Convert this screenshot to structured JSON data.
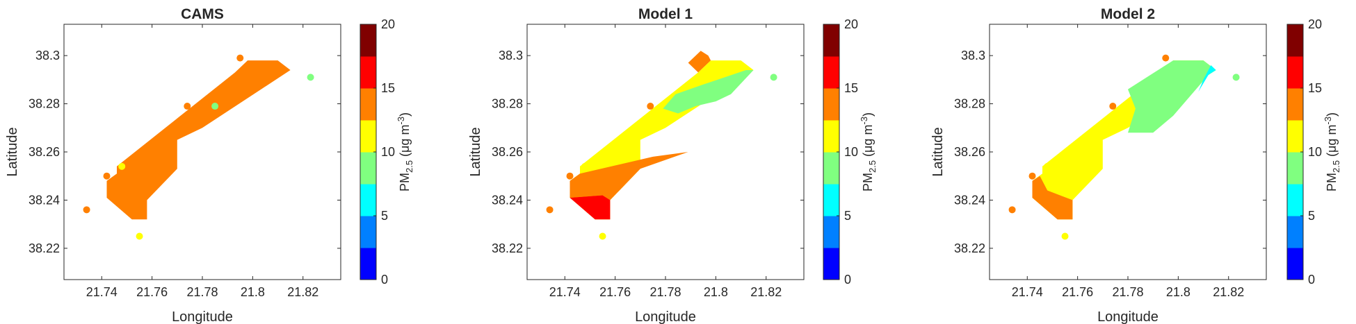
{
  "chart_data": [
    {
      "type": "contour-map",
      "title": "CAMS",
      "xlabel": "Longitude",
      "ylabel": "Latitude",
      "xlim": [
        21.725,
        21.835
      ],
      "ylim": [
        38.207,
        38.313
      ],
      "xticks": [
        21.74,
        21.76,
        21.78,
        21.8,
        21.82
      ],
      "xtick_labels": [
        "21.74",
        "21.76",
        "21.78",
        "21.8",
        "21.82"
      ],
      "yticks": [
        38.22,
        38.24,
        38.26,
        38.28,
        38.3
      ],
      "ytick_labels": [
        "38.22",
        "38.24",
        "38.26",
        "38.28",
        "38.3"
      ],
      "regions": [
        {
          "level": "12.5-15",
          "color": "#FF8000",
          "polygon": [
            [
              21.742,
              38.248
            ],
            [
              21.746,
              38.251
            ],
            [
              21.746,
              38.254
            ],
            [
              21.793,
              38.293
            ],
            [
              21.798,
              38.298
            ],
            [
              21.81,
              38.298
            ],
            [
              21.815,
              38.294
            ],
            [
              21.78,
              38.27
            ],
            [
              21.77,
              38.265
            ],
            [
              21.77,
              38.253
            ],
            [
              21.758,
              38.24
            ],
            [
              21.758,
              38.232
            ],
            [
              21.752,
              38.232
            ],
            [
              21.742,
              38.241
            ]
          ]
        }
      ],
      "stations": [
        {
          "lon": 21.734,
          "lat": 38.236,
          "pm25": 13.5
        },
        {
          "lon": 21.742,
          "lat": 38.25,
          "pm25": 13.5
        },
        {
          "lon": 21.748,
          "lat": 38.254,
          "pm25": 11.5
        },
        {
          "lon": 21.755,
          "lat": 38.225,
          "pm25": 11.5
        },
        {
          "lon": 21.774,
          "lat": 38.279,
          "pm25": 13.5
        },
        {
          "lon": 21.785,
          "lat": 38.279,
          "pm25": 9
        },
        {
          "lon": 21.795,
          "lat": 38.299,
          "pm25": 13.5
        },
        {
          "lon": 21.823,
          "lat": 38.291,
          "pm25": 9
        }
      ]
    },
    {
      "type": "contour-map",
      "title": "Model 1",
      "xlabel": "Longitude",
      "ylabel": "Latitude",
      "xlim": [
        21.725,
        21.835
      ],
      "ylim": [
        38.207,
        38.313
      ],
      "xticks": [
        21.74,
        21.76,
        21.78,
        21.8,
        21.82
      ],
      "xtick_labels": [
        "21.74",
        "21.76",
        "21.78",
        "21.8",
        "21.82"
      ],
      "yticks": [
        38.22,
        38.24,
        38.26,
        38.28,
        38.3
      ],
      "ytick_labels": [
        "38.22",
        "38.24",
        "38.26",
        "38.28",
        "38.3"
      ],
      "regions": [
        {
          "level": "10-12.5",
          "color": "#FFFF00",
          "polygon": [
            [
              21.742,
              38.248
            ],
            [
              21.746,
              38.251
            ],
            [
              21.746,
              38.254
            ],
            [
              21.793,
              38.293
            ],
            [
              21.798,
              38.298
            ],
            [
              21.81,
              38.298
            ],
            [
              21.815,
              38.294
            ],
            [
              21.78,
              38.27
            ],
            [
              21.77,
              38.265
            ],
            [
              21.77,
              38.253
            ],
            [
              21.758,
              38.24
            ],
            [
              21.758,
              38.232
            ],
            [
              21.752,
              38.232
            ],
            [
              21.742,
              38.241
            ]
          ]
        },
        {
          "level": "12.5-15",
          "color": "#FF8000",
          "polygon": [
            [
              21.742,
              38.241
            ],
            [
              21.742,
              38.248
            ],
            [
              21.746,
              38.251
            ],
            [
              21.775,
              38.258
            ],
            [
              21.789,
              38.26
            ],
            [
              21.77,
              38.253
            ],
            [
              21.758,
              38.24
            ],
            [
              21.755,
              38.242
            ]
          ]
        },
        {
          "level": "15-17.5",
          "color": "#FF0000",
          "polygon": [
            [
              21.742,
              38.241
            ],
            [
              21.755,
              38.242
            ],
            [
              21.758,
              38.24
            ],
            [
              21.758,
              38.232
            ],
            [
              21.752,
              38.232
            ]
          ]
        },
        {
          "level": "7.5-10",
          "color": "#80FF80",
          "polygon": [
            [
              21.779,
              38.278
            ],
            [
              21.784,
              38.284
            ],
            [
              21.795,
              38.288
            ],
            [
              21.812,
              38.294
            ],
            [
              21.815,
              38.294
            ],
            [
              21.806,
              38.284
            ],
            [
              21.8,
              38.281
            ],
            [
              21.792,
              38.279
            ],
            [
              21.785,
              38.276
            ]
          ]
        },
        {
          "level": "12.5-15",
          "color": "#FF8000",
          "polygon": [
            [
              21.789,
              38.297
            ],
            [
              21.793,
              38.293
            ],
            [
              21.798,
              38.298
            ],
            [
              21.797,
              38.3
            ],
            [
              21.794,
              38.302
            ]
          ]
        }
      ],
      "stations": [
        {
          "lon": 21.734,
          "lat": 38.236,
          "pm25": 13.5
        },
        {
          "lon": 21.742,
          "lat": 38.25,
          "pm25": 13.5
        },
        {
          "lon": 21.748,
          "lat": 38.254,
          "pm25": 11.5
        },
        {
          "lon": 21.755,
          "lat": 38.225,
          "pm25": 11.5
        },
        {
          "lon": 21.774,
          "lat": 38.279,
          "pm25": 13.5
        },
        {
          "lon": 21.795,
          "lat": 38.299,
          "pm25": 13.5
        },
        {
          "lon": 21.823,
          "lat": 38.291,
          "pm25": 9
        }
      ]
    },
    {
      "type": "contour-map",
      "title": "Model 2",
      "xlabel": "Longitude",
      "ylabel": "Latitude",
      "xlim": [
        21.725,
        21.835
      ],
      "ylim": [
        38.207,
        38.313
      ],
      "xticks": [
        21.74,
        21.76,
        21.78,
        21.8,
        21.82
      ],
      "xtick_labels": [
        "21.74",
        "21.76",
        "21.78",
        "21.8",
        "21.82"
      ],
      "yticks": [
        38.22,
        38.24,
        38.26,
        38.28,
        38.3
      ],
      "ytick_labels": [
        "38.22",
        "38.24",
        "38.26",
        "38.28",
        "38.3"
      ],
      "regions": [
        {
          "level": "10-12.5",
          "color": "#FFFF00",
          "polygon": [
            [
              21.742,
              38.248
            ],
            [
              21.746,
              38.251
            ],
            [
              21.746,
              38.254
            ],
            [
              21.793,
              38.293
            ],
            [
              21.798,
              38.298
            ],
            [
              21.81,
              38.298
            ],
            [
              21.815,
              38.294
            ],
            [
              21.78,
              38.27
            ],
            [
              21.77,
              38.265
            ],
            [
              21.77,
              38.253
            ],
            [
              21.758,
              38.24
            ],
            [
              21.758,
              38.232
            ],
            [
              21.752,
              38.232
            ],
            [
              21.742,
              38.241
            ]
          ]
        },
        {
          "level": "12.5-15",
          "color": "#FF8000",
          "polygon": [
            [
              21.742,
              38.241
            ],
            [
              21.742,
              38.248
            ],
            [
              21.745,
              38.25
            ],
            [
              21.748,
              38.244
            ],
            [
              21.758,
              38.24
            ],
            [
              21.758,
              38.232
            ],
            [
              21.752,
              38.232
            ]
          ]
        },
        {
          "level": "7.5-10",
          "color": "#80FF80",
          "polygon": [
            [
              21.78,
              38.286
            ],
            [
              21.798,
              38.298
            ],
            [
              21.81,
              38.298
            ],
            [
              21.815,
              38.294
            ],
            [
              21.812,
              38.292
            ],
            [
              21.798,
              38.275
            ],
            [
              21.79,
              38.268
            ],
            [
              21.78,
              38.268
            ],
            [
              21.783,
              38.278
            ]
          ]
        },
        {
          "level": "5-7.5",
          "color": "#00FFFF",
          "polygon": [
            [
              21.808,
              38.285
            ],
            [
              21.812,
              38.292
            ],
            [
              21.815,
              38.294
            ],
            [
              21.813,
              38.296
            ],
            [
              21.81,
              38.29
            ]
          ]
        }
      ],
      "stations": [
        {
          "lon": 21.734,
          "lat": 38.236,
          "pm25": 13.5
        },
        {
          "lon": 21.742,
          "lat": 38.25,
          "pm25": 13.5
        },
        {
          "lon": 21.748,
          "lat": 38.254,
          "pm25": 11.5
        },
        {
          "lon": 21.755,
          "lat": 38.225,
          "pm25": 11.5
        },
        {
          "lon": 21.774,
          "lat": 38.279,
          "pm25": 13.5
        },
        {
          "lon": 21.795,
          "lat": 38.299,
          "pm25": 13.5
        },
        {
          "lon": 21.823,
          "lat": 38.291,
          "pm25": 9
        }
      ]
    }
  ],
  "colorbar": {
    "levels": [
      0,
      2.5,
      5,
      7.5,
      10,
      12.5,
      15,
      17.5,
      20
    ],
    "colors": [
      "#0000FF",
      "#0080FF",
      "#00FFFF",
      "#80FF80",
      "#FFFF00",
      "#FF8000",
      "#FF0000",
      "#800000"
    ],
    "ticks": [
      0,
      5,
      10,
      15,
      20
    ],
    "tick_labels": [
      "0",
      "5",
      "10",
      "15",
      "20"
    ],
    "label_main": "PM",
    "label_sub": "2.5",
    "label_units": " (μg m",
    "label_sup": "-3",
    "label_close": ")"
  }
}
